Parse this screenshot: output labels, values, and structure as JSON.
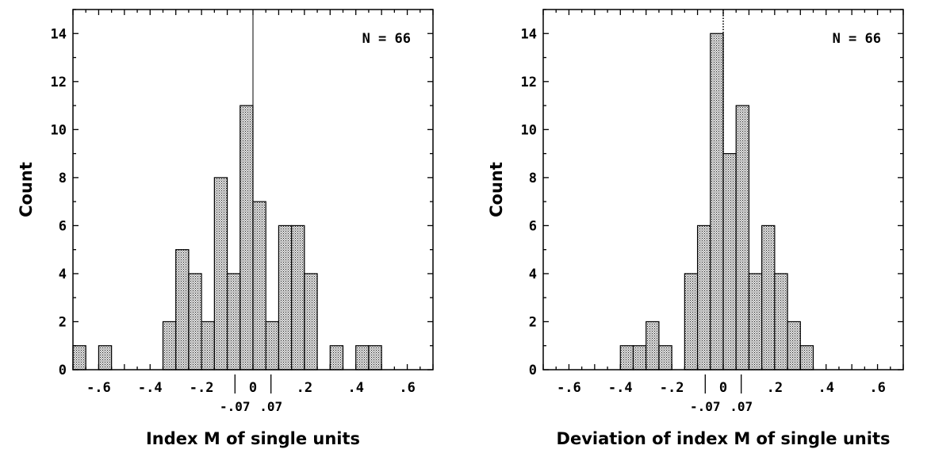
{
  "chart_data": [
    {
      "type": "bar",
      "title": "",
      "xlabel": "Index M of single units",
      "ylabel": "Count",
      "annotation": "N = 66",
      "xlim": [
        -0.7,
        0.7
      ],
      "ylim": [
        0,
        15
      ],
      "bin_width": 0.05,
      "reference_line": {
        "x": 0,
        "style": "solid"
      },
      "bins": [
        {
          "x0": -0.7,
          "count": 1
        },
        {
          "x0": -0.6,
          "count": 1
        },
        {
          "x0": -0.35,
          "count": 2
        },
        {
          "x0": -0.3,
          "count": 5
        },
        {
          "x0": -0.25,
          "count": 4
        },
        {
          "x0": -0.2,
          "count": 2
        },
        {
          "x0": -0.15,
          "count": 8
        },
        {
          "x0": -0.1,
          "count": 4
        },
        {
          "x0": -0.05,
          "count": 11
        },
        {
          "x0": 0.0,
          "count": 7
        },
        {
          "x0": 0.05,
          "count": 2
        },
        {
          "x0": 0.1,
          "count": 6
        },
        {
          "x0": 0.15,
          "count": 6
        },
        {
          "x0": 0.2,
          "count": 4
        },
        {
          "x0": 0.3,
          "count": 1
        },
        {
          "x0": 0.4,
          "count": 1
        },
        {
          "x0": 0.45,
          "count": 1
        }
      ],
      "y_ticks": [
        0,
        2,
        4,
        6,
        8,
        10,
        12,
        14
      ],
      "y_tick_labels": [
        "0",
        "2",
        "4",
        "6",
        "8",
        "10",
        "12",
        "14"
      ],
      "x_ticks": [
        -0.6,
        -0.4,
        -0.2,
        0,
        0.2,
        0.4,
        0.6
      ],
      "x_tick_labels": [
        "-.6",
        "-.4",
        "-.2",
        "0",
        ".2",
        ".4",
        ".6"
      ],
      "marker_ticks": [
        -0.07,
        0.07
      ],
      "marker_tick_labels": [
        "-.07",
        ".07"
      ]
    },
    {
      "type": "bar",
      "title": "",
      "xlabel": "Deviation of index M of single units",
      "ylabel": "Count",
      "annotation": "N = 66",
      "xlim": [
        -0.7,
        0.7
      ],
      "ylim": [
        0,
        15
      ],
      "bin_width": 0.05,
      "reference_line": {
        "x": 0,
        "style": "dotted"
      },
      "bins": [
        {
          "x0": -0.4,
          "count": 1
        },
        {
          "x0": -0.35,
          "count": 1
        },
        {
          "x0": -0.3,
          "count": 2
        },
        {
          "x0": -0.25,
          "count": 1
        },
        {
          "x0": -0.15,
          "count": 4
        },
        {
          "x0": -0.1,
          "count": 6
        },
        {
          "x0": -0.05,
          "count": 14
        },
        {
          "x0": 0.0,
          "count": 9
        },
        {
          "x0": 0.05,
          "count": 11
        },
        {
          "x0": 0.1,
          "count": 4
        },
        {
          "x0": 0.15,
          "count": 6
        },
        {
          "x0": 0.2,
          "count": 4
        },
        {
          "x0": 0.25,
          "count": 2
        },
        {
          "x0": 0.3,
          "count": 1
        }
      ],
      "y_ticks": [
        0,
        2,
        4,
        6,
        8,
        10,
        12,
        14
      ],
      "y_tick_labels": [
        "0",
        "2",
        "4",
        "6",
        "8",
        "10",
        "12",
        "14"
      ],
      "x_ticks": [
        -0.6,
        -0.4,
        -0.2,
        0,
        0.2,
        0.4,
        0.6
      ],
      "x_tick_labels": [
        "-.6",
        "-.4",
        "-.2",
        "0",
        ".2",
        ".4",
        ".6"
      ],
      "marker_ticks": [
        -0.07,
        0.07
      ],
      "marker_tick_labels": [
        "-.07",
        ".07"
      ]
    }
  ]
}
